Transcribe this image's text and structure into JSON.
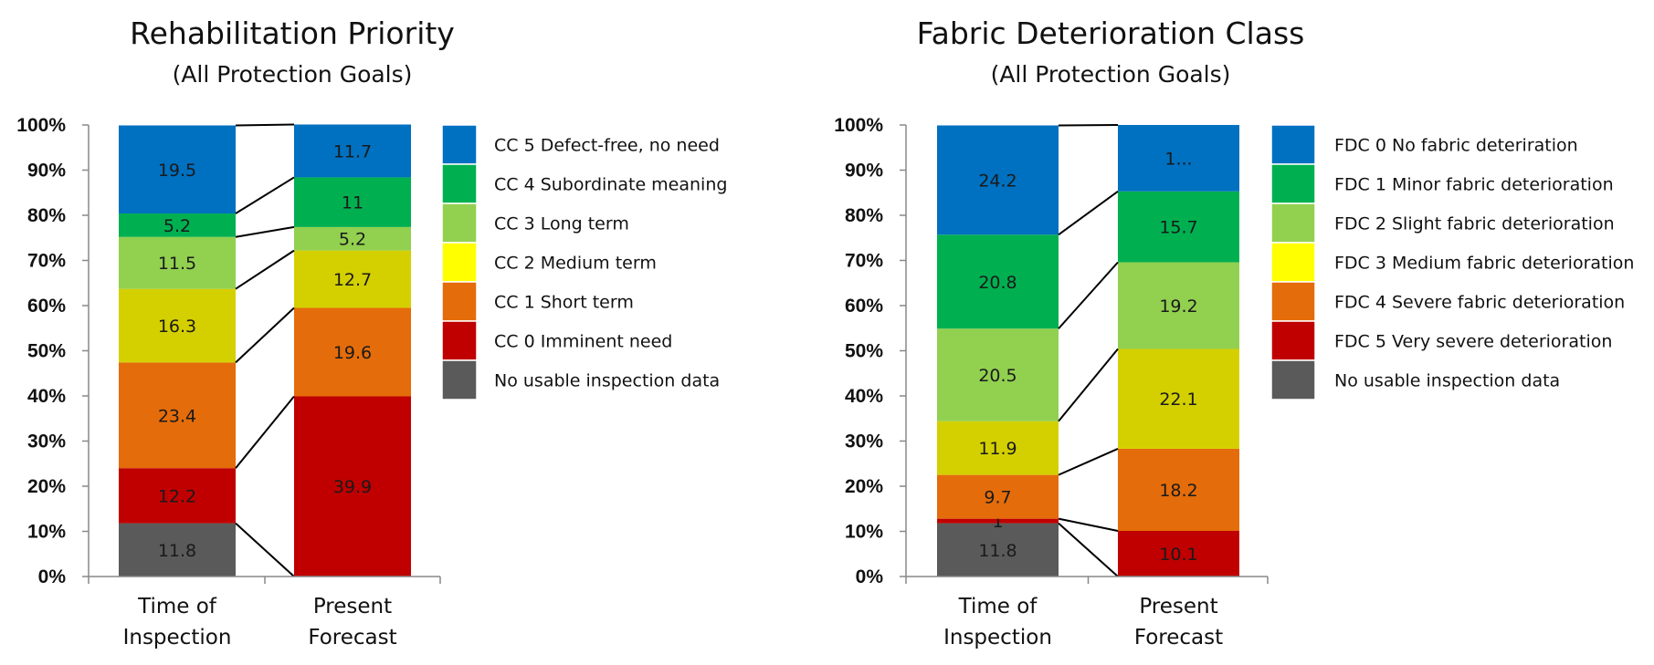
{
  "chart_data": [
    {
      "type": "bar",
      "stacked": true,
      "title": "Rehabilitation Priority",
      "subtitle": "(All Protection Goals)",
      "categories": [
        [
          "Time of",
          "Inspection"
        ],
        [
          "Present",
          "Forecast"
        ]
      ],
      "ylim": [
        0,
        100
      ],
      "yticks": [
        "0%",
        "10%",
        "20%",
        "30%",
        "40%",
        "50%",
        "60%",
        "70%",
        "80%",
        "90%",
        "100%"
      ],
      "legend_position": "right",
      "series": [
        {
          "name": "No usable inspection data",
          "color": "#5a5a5a",
          "values": [
            11.8,
            0
          ],
          "labels": [
            "11.8",
            ""
          ]
        },
        {
          "name": "CC 0 Imminent need",
          "color": "#c00000",
          "values": [
            12.2,
            39.9
          ],
          "labels": [
            "12.2",
            "39.9"
          ]
        },
        {
          "name": "CC 1 Short term",
          "color": "#e46c0a",
          "values": [
            23.4,
            19.6
          ],
          "labels": [
            "23.4",
            "19.6"
          ]
        },
        {
          "name": "CC 2 Medium term",
          "color": "#d4d000",
          "legend_color": "#ffff00",
          "values": [
            16.3,
            12.7
          ],
          "labels": [
            "16.3",
            "12.7"
          ]
        },
        {
          "name": "CC 3 Long term",
          "color": "#92d050",
          "values": [
            11.5,
            5.2
          ],
          "labels": [
            "11.5",
            "5.2"
          ]
        },
        {
          "name": "CC 4 Subordinate meaning",
          "color": "#00b050",
          "values": [
            5.2,
            11
          ],
          "labels": [
            "5.2",
            "11"
          ]
        },
        {
          "name": "CC 5 Defect-free, no need",
          "color": "#0070c0",
          "values": [
            19.5,
            11.7
          ],
          "labels": [
            "19.5",
            "11.7"
          ]
        }
      ]
    },
    {
      "type": "bar",
      "stacked": true,
      "title": "Fabric Deterioration Class",
      "subtitle": "(All Protection Goals)",
      "categories": [
        [
          "Time of",
          "Inspection"
        ],
        [
          "Present",
          "Forecast"
        ]
      ],
      "ylim": [
        0,
        100
      ],
      "yticks": [
        "0%",
        "10%",
        "20%",
        "30%",
        "40%",
        "50%",
        "60%",
        "70%",
        "80%",
        "90%",
        "100%"
      ],
      "legend_position": "right",
      "series": [
        {
          "name": "No usable inspection data",
          "color": "#5a5a5a",
          "values": [
            11.8,
            0
          ],
          "labels": [
            "11.8",
            ""
          ]
        },
        {
          "name": "FDC 5 Very severe deterioration",
          "color": "#c00000",
          "values": [
            1,
            10.1
          ],
          "labels": [
            "1",
            "10.1"
          ]
        },
        {
          "name": "FDC 4 Severe fabric deterioration",
          "color": "#e46c0a",
          "values": [
            9.7,
            18.2
          ],
          "labels": [
            "9.7",
            "18.2"
          ]
        },
        {
          "name": "FDC 3 Medium fabric deterioration",
          "color": "#d4d000",
          "legend_color": "#ffff00",
          "values": [
            11.9,
            22.1
          ],
          "labels": [
            "11.9",
            "22.1"
          ]
        },
        {
          "name": "FDC 2 Slight fabric deterioration",
          "color": "#92d050",
          "values": [
            20.5,
            19.2
          ],
          "labels": [
            "20.5",
            "19.2"
          ]
        },
        {
          "name": "FDC 1 Minor fabric deterioration",
          "color": "#00b050",
          "values": [
            20.8,
            15.7
          ],
          "labels": [
            "20.8",
            "15.7"
          ]
        },
        {
          "name": "FDC 0 No fabric deteriration",
          "color": "#0070c0",
          "values": [
            24.2,
            14.7
          ],
          "labels": [
            "24.2",
            "1..."
          ]
        }
      ]
    }
  ]
}
